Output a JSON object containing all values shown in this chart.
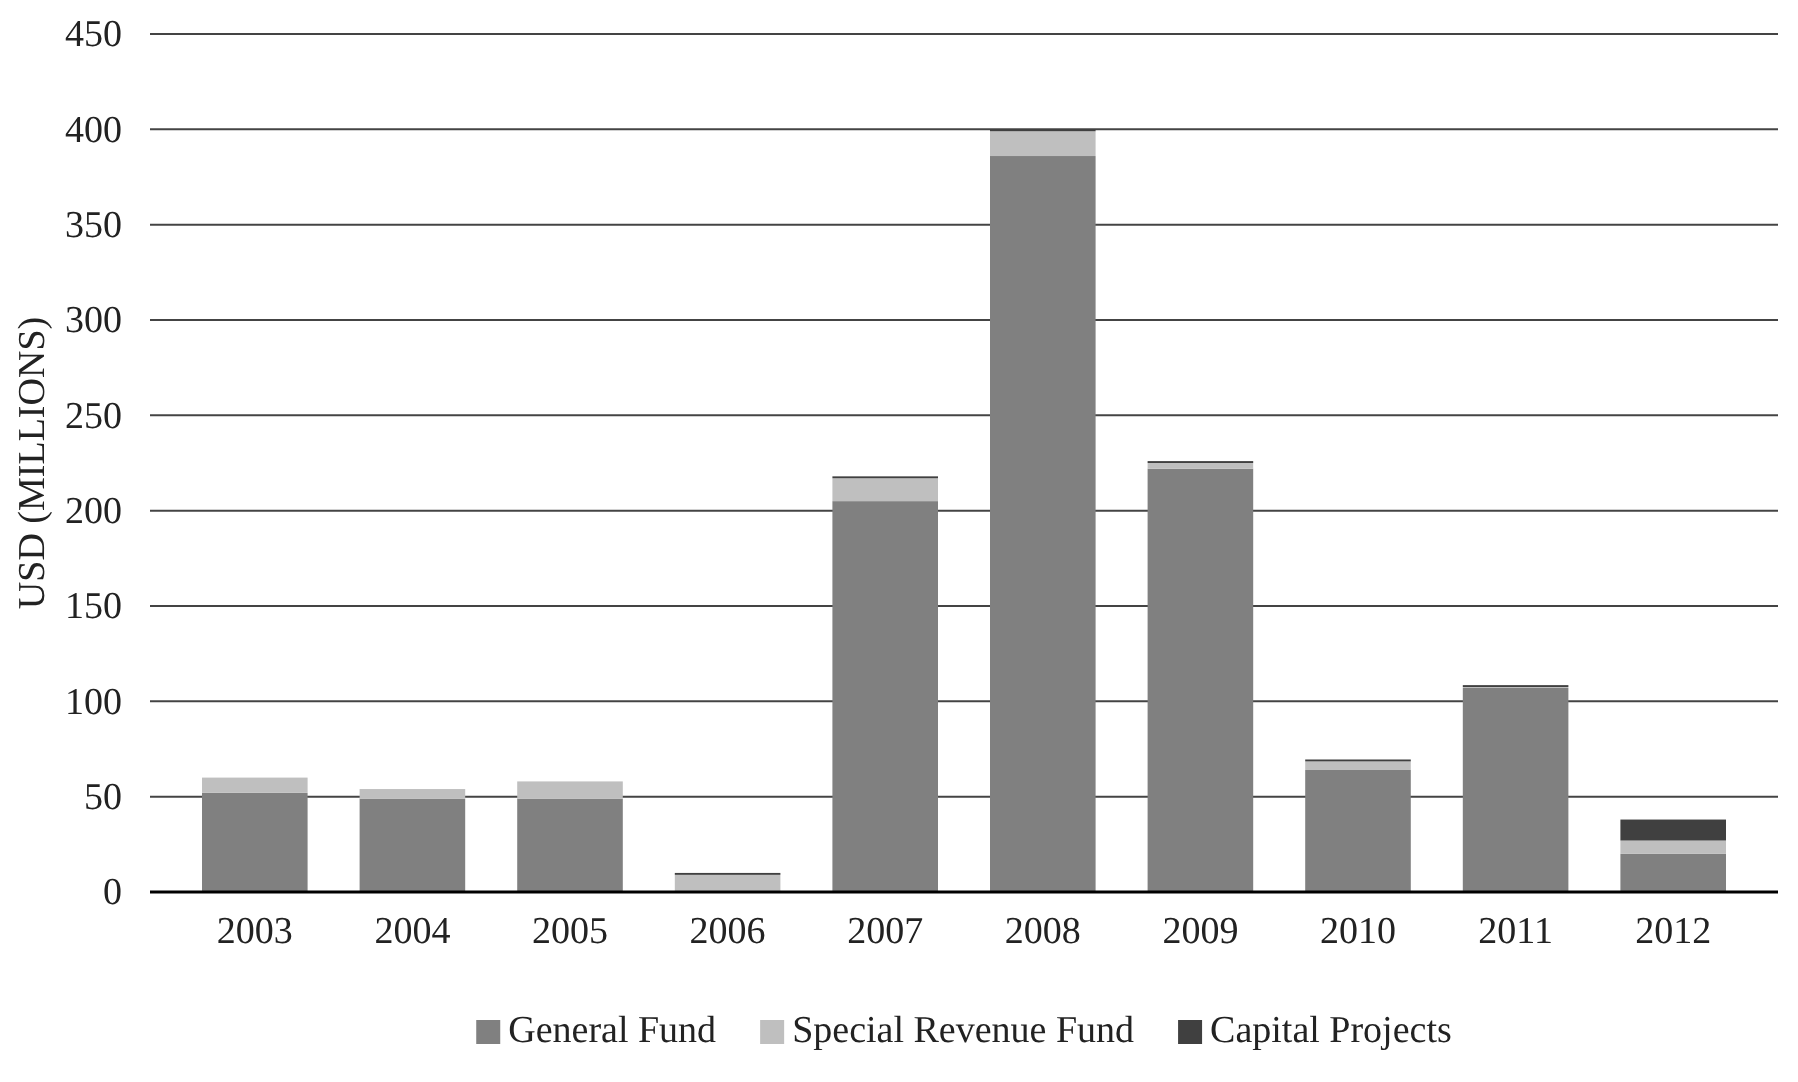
{
  "chart_data": {
    "type": "bar",
    "stacked": true,
    "ylabel": "USD (MILLIONS)",
    "categories": [
      "2003",
      "2004",
      "2005",
      "2006",
      "2007",
      "2008",
      "2009",
      "2010",
      "2011",
      "2012"
    ],
    "series": [
      {
        "name": "General Fund",
        "color": "#808080",
        "values": [
          52,
          49,
          49,
          0,
          205,
          386,
          222,
          64,
          107,
          20
        ]
      },
      {
        "name": "Special Revenue Fund",
        "color": "#bfbfbf",
        "values": [
          8,
          5,
          9,
          9,
          12,
          13,
          3,
          4.5,
          0.5,
          7
        ]
      },
      {
        "name": "Capital Projects",
        "color": "#404040",
        "values": [
          0,
          0,
          0,
          1,
          1,
          1,
          1,
          1,
          1,
          11
        ]
      }
    ],
    "ylim": [
      0,
      450
    ],
    "yticks": [
      0,
      50,
      100,
      150,
      200,
      250,
      300,
      350,
      400,
      450
    ],
    "grid": "y",
    "legend": "bottom"
  }
}
